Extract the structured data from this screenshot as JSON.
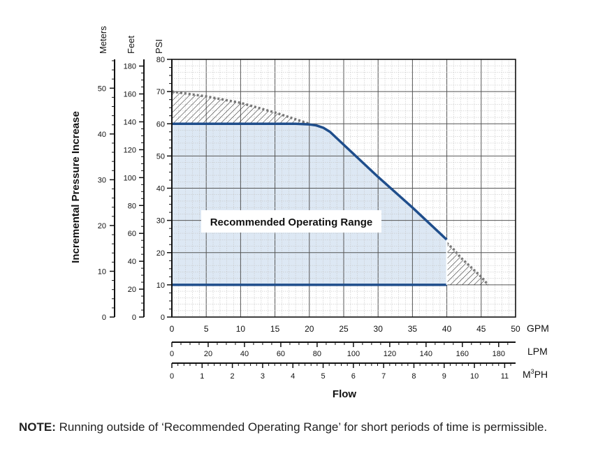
{
  "chart_data": {
    "type": "line",
    "y_title": "Incremental Pressure Increase",
    "x_title": "Flow",
    "axes": {
      "psi": {
        "label": "PSI",
        "ticks": [
          0,
          10,
          20,
          30,
          40,
          50,
          60,
          70,
          80
        ],
        "range": [
          0,
          80
        ]
      },
      "feet": {
        "label": "Feet",
        "ticks": [
          0,
          20,
          40,
          60,
          80,
          100,
          120,
          140,
          160,
          180
        ],
        "range": [
          0,
          184.8
        ]
      },
      "meters": {
        "label": "Meters",
        "ticks": [
          0,
          10,
          20,
          30,
          40,
          50
        ],
        "range": [
          0,
          56.3
        ]
      },
      "gpm": {
        "label": "GPM",
        "ticks": [
          0,
          5,
          10,
          15,
          20,
          25,
          30,
          35,
          40,
          45,
          50
        ],
        "range": [
          0,
          50
        ]
      },
      "lpm": {
        "label": "LPM",
        "ticks": [
          0,
          20,
          40,
          60,
          80,
          100,
          120,
          140,
          160,
          180
        ],
        "range": [
          0,
          189.3
        ]
      },
      "m3ph": {
        "label": "M³PH",
        "label_base": "M",
        "label_sup": "3",
        "label_tail": "PH",
        "ticks": [
          0,
          1,
          2,
          3,
          4,
          5,
          6,
          7,
          8,
          9,
          10,
          11
        ],
        "range": [
          0,
          11.36
        ]
      }
    },
    "series": [
      {
        "role": "max-pressure",
        "color": "#1f4e8c",
        "x": [
          0,
          18,
          20,
          21,
          22,
          23,
          25,
          30,
          35,
          40
        ],
        "y": [
          60,
          60,
          59.8,
          59.5,
          58.8,
          57.5,
          53.5,
          43.5,
          34,
          24
        ]
      },
      {
        "role": "min-pressure",
        "color": "#1f4e8c",
        "x": [
          0,
          40
        ],
        "y": [
          10,
          10
        ]
      },
      {
        "role": "limit-line",
        "color": "#777777",
        "x": [
          0,
          5,
          10,
          15,
          20
        ],
        "y": [
          70,
          68.5,
          66.5,
          63.5,
          60
        ]
      },
      {
        "role": "limit-line",
        "color": "#777777",
        "x": [
          40,
          41,
          42,
          43,
          44,
          45,
          46
        ],
        "y": [
          23,
          21,
          18.5,
          16.5,
          14.5,
          12.5,
          10
        ]
      }
    ],
    "annotations": [
      {
        "text": "Recommended Operating Range",
        "x": 15,
        "y": 30
      }
    ],
    "region_color": "#dde8f4",
    "grid": true
  },
  "note": {
    "label": "NOTE:",
    "text": "Running outside of ‘Recommended Operating Range’ for short periods of time is permissible."
  }
}
